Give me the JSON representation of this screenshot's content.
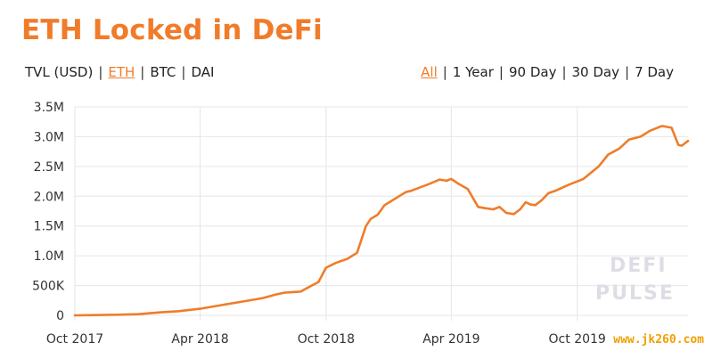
{
  "header": {
    "title": "ETH Locked in DeFi"
  },
  "units": {
    "items": [
      {
        "label": "TVL (USD)",
        "active": false
      },
      {
        "label": "ETH",
        "active": true
      },
      {
        "label": "BTC",
        "active": false
      },
      {
        "label": "DAI",
        "active": false
      }
    ]
  },
  "ranges": {
    "items": [
      {
        "label": "All",
        "active": true
      },
      {
        "label": "1 Year",
        "active": false
      },
      {
        "label": "90 Day",
        "active": false
      },
      {
        "label": "30 Day",
        "active": false
      },
      {
        "label": "7 Day",
        "active": false
      }
    ]
  },
  "watermark": {
    "line1": "DEFI",
    "line2": "PULSE"
  },
  "site_label": "www.jk260.com",
  "colors": {
    "accent": "#f07c2a",
    "line": "#f07c2a",
    "grid": "#e6e6e6"
  },
  "chart_data": {
    "type": "line",
    "title": "ETH Locked in DeFi",
    "xlabel": "",
    "ylabel": "",
    "grid": true,
    "ylim": [
      0,
      3500000
    ],
    "yticks": [
      0,
      500000,
      1000000,
      1500000,
      2000000,
      2500000,
      3000000,
      3500000
    ],
    "ytick_labels": [
      "0",
      "500K",
      "1.0M",
      "1.5M",
      "2.0M",
      "2.5M",
      "3.0M",
      "3.5M"
    ],
    "xlim": [
      "2017-10-01",
      "2020-03-10"
    ],
    "xticks": [
      "2017-10-01",
      "2018-04-01",
      "2018-10-01",
      "2019-04-01",
      "2019-10-01"
    ],
    "xtick_labels": [
      "Oct 2017",
      "Apr 2018",
      "Oct 2018",
      "Apr 2019",
      "Oct 2019"
    ],
    "series": [
      {
        "x": [
          "2017-10-01",
          "2017-11-01",
          "2017-12-01",
          "2018-01-01",
          "2018-02-01",
          "2018-03-01",
          "2018-04-01",
          "2018-05-01",
          "2018-06-01",
          "2018-07-01",
          "2018-07-20",
          "2018-08-01",
          "2018-08-25",
          "2018-09-10",
          "2018-09-20",
          "2018-10-01",
          "2018-10-15",
          "2018-11-01",
          "2018-11-15",
          "2018-11-28",
          "2018-12-05",
          "2018-12-15",
          "2018-12-25",
          "2019-01-01",
          "2019-01-15",
          "2019-01-25",
          "2019-02-01",
          "2019-02-15",
          "2019-03-01",
          "2019-03-15",
          "2019-03-25",
          "2019-04-01",
          "2019-04-10",
          "2019-04-25",
          "2019-05-10",
          "2019-05-20",
          "2019-06-01",
          "2019-06-10",
          "2019-06-20",
          "2019-07-01",
          "2019-07-10",
          "2019-07-18",
          "2019-07-25",
          "2019-08-01",
          "2019-08-10",
          "2019-08-20",
          "2019-09-01",
          "2019-09-20",
          "2019-10-10",
          "2019-11-01",
          "2019-11-15",
          "2019-12-01",
          "2019-12-15",
          "2020-01-01",
          "2020-01-15",
          "2020-02-01",
          "2020-02-15",
          "2020-02-25",
          "2020-03-01",
          "2020-03-10"
        ],
        "values": [
          0,
          5000,
          10000,
          20000,
          50000,
          70000,
          110000,
          170000,
          230000,
          290000,
          350000,
          380000,
          400000,
          500000,
          560000,
          800000,
          880000,
          950000,
          1050000,
          1500000,
          1620000,
          1690000,
          1850000,
          1900000,
          2000000,
          2070000,
          2090000,
          2150000,
          2210000,
          2280000,
          2260000,
          2290000,
          2220000,
          2120000,
          1820000,
          1800000,
          1780000,
          1820000,
          1720000,
          1700000,
          1780000,
          1900000,
          1860000,
          1850000,
          1930000,
          2050000,
          2100000,
          2200000,
          2290000,
          2500000,
          2700000,
          2800000,
          2950000,
          3000000,
          3100000,
          3180000,
          3150000,
          2860000,
          2850000,
          2930000
        ]
      }
    ]
  }
}
